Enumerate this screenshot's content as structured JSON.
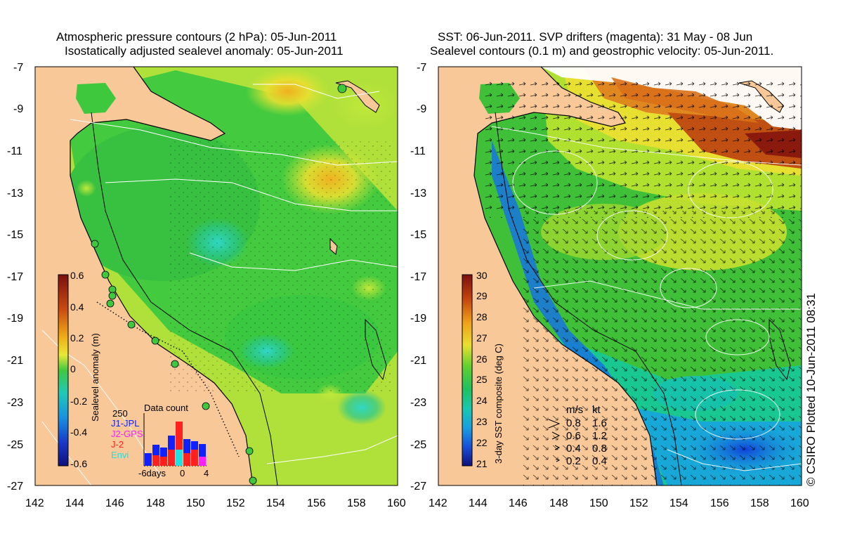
{
  "left_panel": {
    "title_line1": "Atmospheric pressure contours (2 hPa): 05-Jun-2011",
    "title_line2": "Isostatically adjusted sealevel anomaly: 05-Jun-2011",
    "colorbar": {
      "label": "Sealevel anomaly (m)",
      "ticks": [
        "0.6",
        "0.4",
        "0.2",
        "0",
        "-0.2",
        "-0.4",
        "-0.6"
      ],
      "colors": [
        "#7a0f0f",
        "#c84a12",
        "#f0a012",
        "#f5e43a",
        "#b8e83a",
        "#3ac83a",
        "#18c8a8",
        "#1890e0",
        "#1838c8",
        "#10107a"
      ]
    },
    "data_count": {
      "title": "Data count",
      "max_label": "250",
      "x_ticks": [
        "-6days",
        "0",
        "4"
      ],
      "legend": [
        {
          "label": "J1-JPL",
          "color": "#1020ff"
        },
        {
          "label": "J2-GPS",
          "color": "#ff20ff"
        },
        {
          "label": "J-2",
          "color": "#ff2020"
        },
        {
          "label": "Envi",
          "color": "#20e0e0"
        }
      ]
    }
  },
  "right_panel": {
    "title_line1": "SST: 06-Jun-2011. SVP drifters (magenta): 31 May - 08 Jun",
    "title_line2": "Sealevel contours (0.1 m) and geostrophic velocity: 05-Jun-2011.",
    "colorbar": {
      "label": "3-day SST composite (deg C)",
      "ticks": [
        "30",
        "29",
        "28",
        "27",
        "26",
        "25",
        "24",
        "23",
        "22",
        "21"
      ],
      "colors": [
        "#7a0f0f",
        "#c0400e",
        "#e07818",
        "#f0b418",
        "#f0e030",
        "#b0e030",
        "#40c030",
        "#18c080",
        "#18a8e0",
        "#1858d8",
        "#10108a"
      ]
    },
    "velocity_key": {
      "header_ms": "m/s",
      "header_kt": "kt",
      "rows": [
        {
          "ms": "0.8",
          "kt": "1.6"
        },
        {
          "ms": "0.6",
          "kt": "1.2"
        },
        {
          "ms": "0.4",
          "kt": "0.8"
        },
        {
          "ms": "0.2",
          "kt": "0.4"
        }
      ]
    }
  },
  "axes": {
    "x_ticks": [
      "142",
      "144",
      "146",
      "148",
      "150",
      "152",
      "154",
      "156",
      "158",
      "160"
    ],
    "y_ticks": [
      "-7",
      "-9",
      "-11",
      "-13",
      "-15",
      "-17",
      "-19",
      "-21",
      "-23",
      "-25",
      "-27"
    ]
  },
  "credit": "© CSIRO Plotted 10-Jun-2011 08:31",
  "colors": {
    "land": "#f8c898",
    "ocean_green": "#3ec83e",
    "ocean_yellowgreen": "#b0e43a",
    "cyan": "#22d0b8"
  }
}
